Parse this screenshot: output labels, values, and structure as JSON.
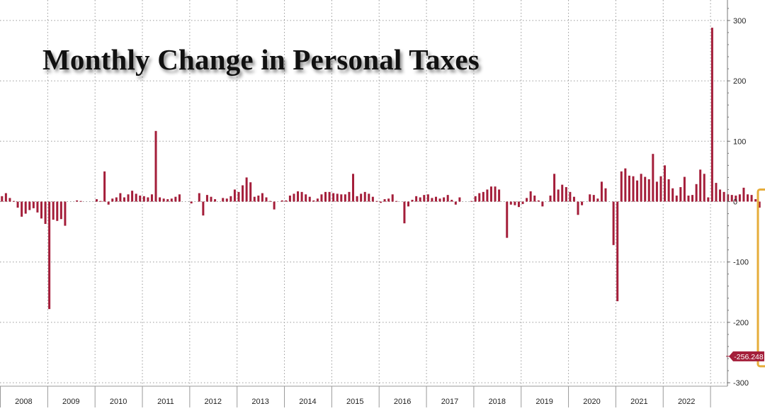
{
  "chart_data": {
    "type": "bar",
    "title": "Monthly Change in Personal Taxes",
    "xlabel": "",
    "ylabel": "",
    "ylim": [
      -300,
      330
    ],
    "yticks": [
      300,
      200,
      100,
      0,
      -100,
      -200,
      -300
    ],
    "year_labels": [
      "2008",
      "2009",
      "2010",
      "2011",
      "2012",
      "2013",
      "2014",
      "2015",
      "2016",
      "2017",
      "2018",
      "2019",
      "2020",
      "2021",
      "2022"
    ],
    "start": "2008-01",
    "values": [
      9,
      14,
      6,
      1,
      -10,
      -25,
      -20,
      -14,
      -11,
      -18,
      -28,
      -37,
      -178,
      -30,
      -32,
      -29,
      -40,
      0,
      0,
      2,
      1,
      0,
      0,
      0,
      4,
      1,
      50,
      -5,
      5,
      7,
      14,
      7,
      12,
      18,
      13,
      10,
      9,
      7,
      12,
      117,
      7,
      5,
      4,
      5,
      8,
      12,
      0,
      0,
      -3,
      0,
      14,
      -23,
      11,
      8,
      4,
      0,
      6,
      5,
      9,
      20,
      16,
      27,
      40,
      32,
      8,
      10,
      14,
      7,
      1,
      -13,
      0,
      2,
      2,
      10,
      13,
      17,
      16,
      12,
      8,
      2,
      5,
      12,
      16,
      16,
      14,
      13,
      12,
      12,
      16,
      46,
      9,
      13,
      16,
      13,
      8,
      1,
      -2,
      4,
      5,
      12,
      1,
      0,
      -36,
      -8,
      3,
      9,
      7,
      11,
      12,
      6,
      8,
      5,
      7,
      11,
      3,
      -5,
      7,
      0,
      0,
      1,
      9,
      14,
      16,
      20,
      25,
      25,
      20,
      0,
      -60,
      -5,
      -6,
      -9,
      -4,
      6,
      17,
      10,
      2,
      -8,
      0,
      10,
      46,
      20,
      28,
      24,
      16,
      8,
      -22,
      -6,
      0,
      12,
      11,
      5,
      33,
      22,
      0,
      -72,
      -165,
      50,
      55,
      43,
      42,
      35,
      46,
      41,
      37,
      79,
      33,
      42,
      60,
      37,
      22,
      10,
      24,
      41,
      10,
      11,
      29,
      53,
      46,
      7,
      288,
      31,
      20,
      16,
      12,
      11,
      10,
      12,
      23,
      12,
      11,
      4,
      -10,
      0,
      -256.248
    ],
    "last_value_label": "-256.248",
    "annotation": "highlight box around last two months"
  },
  "colors": {
    "bar": "#a41e3a",
    "grid": "#9a9a9a",
    "axis": "#777777",
    "label_bg": "#a41e3a",
    "highlight": "#e6ad3a",
    "text": "#222222"
  }
}
